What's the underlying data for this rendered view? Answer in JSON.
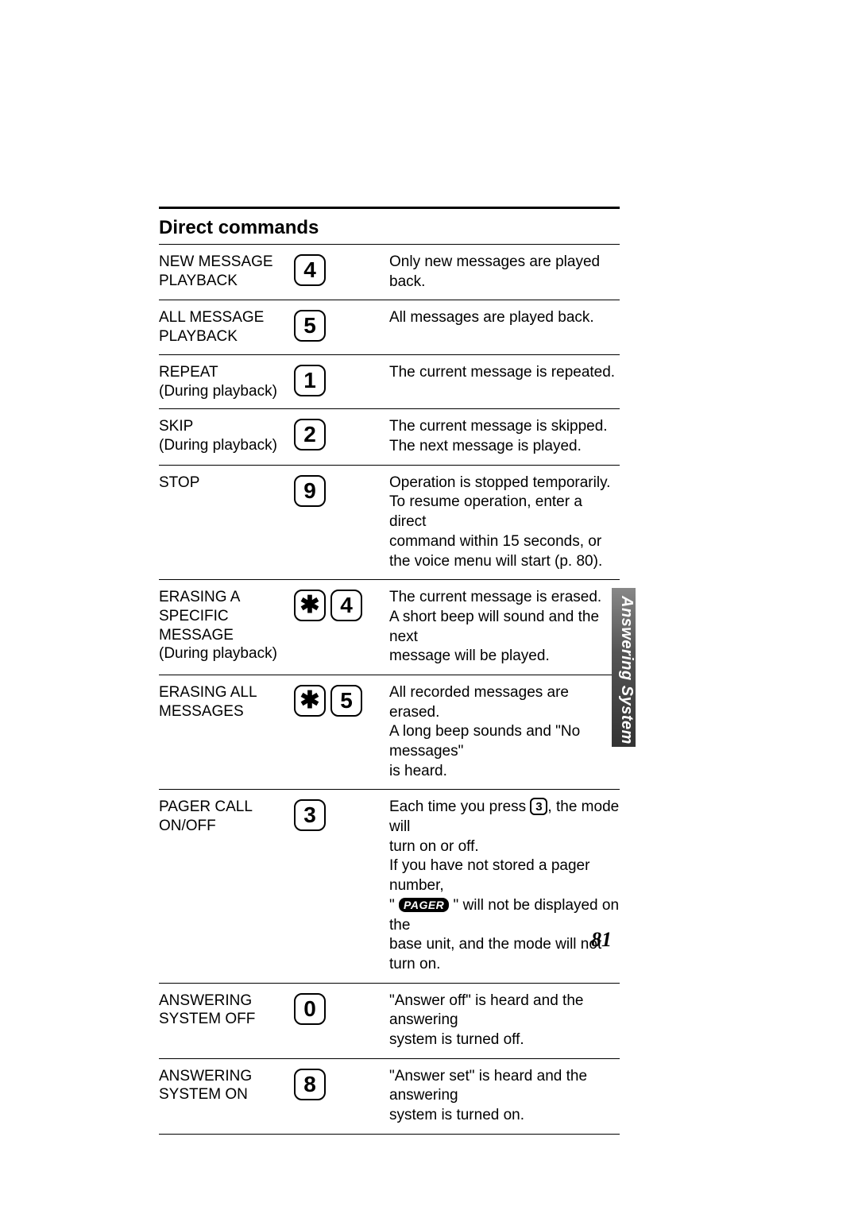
{
  "page": {
    "section_title": "Direct commands",
    "side_tab": "Answering System",
    "page_number": "81"
  },
  "rows": [
    {
      "name_lines": [
        "NEW MESSAGE",
        "PLAYBACK"
      ],
      "keys": [
        "4"
      ],
      "desc_segments": [
        [
          {
            "t": "text",
            "v": "Only new messages are played back."
          }
        ]
      ]
    },
    {
      "name_lines": [
        "ALL MESSAGE",
        "PLAYBACK"
      ],
      "keys": [
        "5"
      ],
      "desc_segments": [
        [
          {
            "t": "text",
            "v": "All messages are played back."
          }
        ]
      ]
    },
    {
      "name_lines": [
        "REPEAT",
        "(During playback)"
      ],
      "keys": [
        "1"
      ],
      "desc_segments": [
        [
          {
            "t": "text",
            "v": "The current message is repeated."
          }
        ]
      ]
    },
    {
      "name_lines": [
        "SKIP",
        "(During playback)"
      ],
      "keys": [
        "2"
      ],
      "desc_segments": [
        [
          {
            "t": "text",
            "v": "The current message is skipped."
          }
        ],
        [
          {
            "t": "text",
            "v": "The next message is played."
          }
        ]
      ]
    },
    {
      "name_lines": [
        "STOP"
      ],
      "keys": [
        "9"
      ],
      "desc_segments": [
        [
          {
            "t": "text",
            "v": "Operation is stopped temporarily."
          }
        ],
        [
          {
            "t": "text",
            "v": "To resume operation, enter a direct"
          }
        ],
        [
          {
            "t": "text",
            "v": "command within 15 seconds, or"
          }
        ],
        [
          {
            "t": "text",
            "v": "the voice menu will start (p. 80)."
          }
        ]
      ]
    },
    {
      "name_lines": [
        "ERASING A",
        "SPECIFIC",
        "MESSAGE",
        "(During playback)"
      ],
      "keys": [
        "✱",
        "4"
      ],
      "desc_segments": [
        [
          {
            "t": "text",
            "v": "The current message is erased."
          }
        ],
        [
          {
            "t": "text",
            "v": "A short beep will sound and the next"
          }
        ],
        [
          {
            "t": "text",
            "v": "message will be played."
          }
        ]
      ]
    },
    {
      "name_lines": [
        "ERASING ALL",
        "MESSAGES"
      ],
      "keys": [
        "✱",
        "5"
      ],
      "desc_segments": [
        [
          {
            "t": "text",
            "v": "All recorded messages are erased."
          }
        ],
        [
          {
            "t": "text",
            "v": "A long beep sounds and \"No messages\""
          }
        ],
        [
          {
            "t": "text",
            "v": "is heard."
          }
        ]
      ]
    },
    {
      "name_lines": [
        "PAGER CALL",
        "ON/OFF"
      ],
      "keys": [
        "3"
      ],
      "desc_segments": [
        [
          {
            "t": "text",
            "v": "Each time you press "
          },
          {
            "t": "inlinekey",
            "v": "3"
          },
          {
            "t": "text",
            "v": ", the mode will"
          }
        ],
        [
          {
            "t": "text",
            "v": "turn on or off."
          }
        ],
        [
          {
            "t": "text",
            "v": "If you have not stored a pager number,"
          }
        ],
        [
          {
            "t": "text",
            "v": "\" "
          },
          {
            "t": "pager",
            "v": "PAGER"
          },
          {
            "t": "text",
            "v": " \" will not be displayed on the"
          }
        ],
        [
          {
            "t": "text",
            "v": "base unit, and the mode will not turn on."
          }
        ]
      ]
    },
    {
      "name_lines": [
        "ANSWERING",
        "SYSTEM OFF"
      ],
      "keys": [
        "0"
      ],
      "desc_segments": [
        [
          {
            "t": "text",
            "v": "\"Answer off\" is heard and the answering"
          }
        ],
        [
          {
            "t": "text",
            "v": "system is turned off."
          }
        ]
      ]
    },
    {
      "name_lines": [
        "ANSWERING",
        "SYSTEM ON"
      ],
      "keys": [
        "8"
      ],
      "desc_segments": [
        [
          {
            "t": "text",
            "v": "\"Answer set\" is heard and the answering"
          }
        ],
        [
          {
            "t": "text",
            "v": "system is turned on."
          }
        ]
      ]
    }
  ]
}
